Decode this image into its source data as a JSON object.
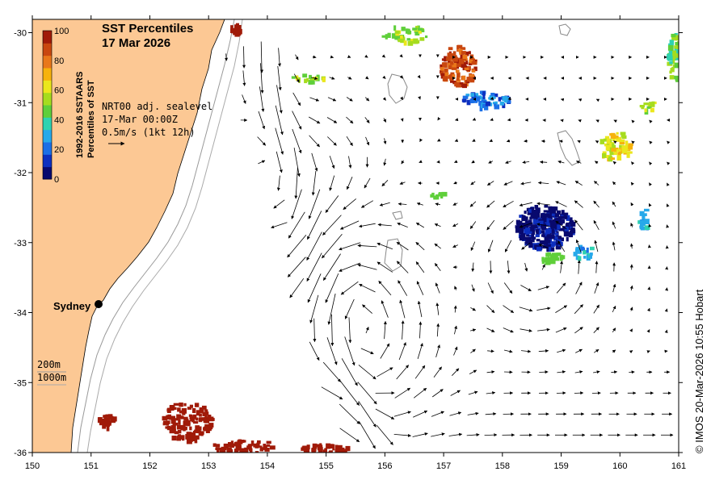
{
  "title": "SST Percentiles",
  "date": "17 Mar 2026",
  "colorbar": {
    "label_line1": "1992-2016 SSTAARS",
    "label_line2": "Percentiles of SST",
    "ticks": [
      "100",
      "80",
      "60",
      "40",
      "20",
      "0"
    ],
    "colors": [
      "#08096e",
      "#0d2fbf",
      "#1b6fe6",
      "#27a9ea",
      "#2fd2b0",
      "#5fcf3a",
      "#a6dc1e",
      "#ebe71c",
      "#f6b20c",
      "#e9771a",
      "#c9470f",
      "#a01a08"
    ]
  },
  "current_info": {
    "line1": "NRT00 adj. sealevel",
    "line2": "17-Mar 00:00Z",
    "line3": "0.5m/s (1kt 12h)"
  },
  "city": "Sydney",
  "isobaths": {
    "line1": "200m",
    "line2": "1000m"
  },
  "credit": "© IMOS 20-Mar-2026 10:55 Hobart",
  "map": {
    "lon_ticks": [
      "150",
      "151",
      "152",
      "153",
      "154",
      "155",
      "156",
      "157",
      "158",
      "159",
      "160",
      "161"
    ],
    "lat_ticks": [
      "-30",
      "-31",
      "-32",
      "-33",
      "-34",
      "-35",
      "-36"
    ],
    "land_color": "#fcc894"
  },
  "chart_data": {
    "type": "heatmap",
    "title": "SST Percentiles 17 Mar 2026",
    "xlim": [
      150,
      161
    ],
    "ylim": [
      -36,
      -30
    ],
    "xticks": [
      150,
      151,
      152,
      153,
      154,
      155,
      156,
      157,
      158,
      159,
      160,
      161
    ],
    "yticks": [
      -30,
      -31,
      -32,
      -33,
      -34,
      -35,
      -36
    ],
    "colorbar_range": [
      0,
      100
    ],
    "current_scale_ms": 0.5
  }
}
